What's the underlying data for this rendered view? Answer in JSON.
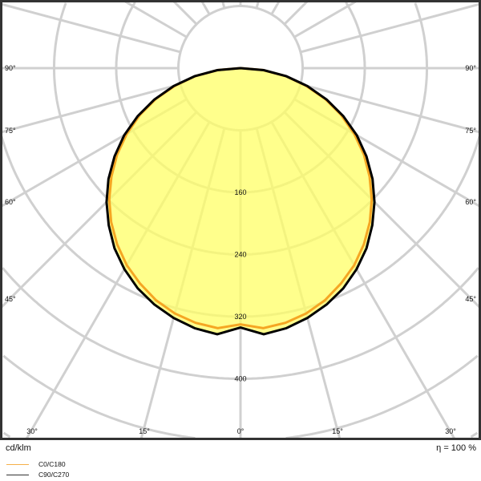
{
  "chart_data": {
    "type": "polar-line",
    "unit_label": "cd/klm",
    "efficiency_label": "η = 100 %",
    "radial_ticks": [
      80,
      160,
      240,
      320,
      400,
      480,
      560
    ],
    "radial_tick_labels": [
      "160",
      "240",
      "320",
      "400"
    ],
    "angle_labels_side": [
      "90°",
      "75°",
      "60°",
      "45°"
    ],
    "angle_labels_bottom": [
      "30°",
      "15°",
      "0°",
      "15°",
      "30°"
    ],
    "angles_deg": [
      0,
      5,
      10,
      15,
      20,
      25,
      30,
      35,
      40,
      45,
      50,
      55,
      60,
      65,
      70,
      75,
      80,
      85,
      90
    ],
    "series": [
      {
        "name": "C0/C180",
        "color": "#f5a623",
        "values": [
          330,
          336,
          333,
          327,
          318,
          306,
          293,
          277,
          259,
          239,
          217,
          194,
          169,
          143,
          116,
          87,
          59,
          29,
          0
        ]
      },
      {
        "name": "C90/C270",
        "color": "#000000",
        "values": [
          334,
          344,
          340,
          333,
          324,
          313,
          299,
          283,
          264,
          244,
          222,
          198,
          173,
          146,
          118,
          89,
          60,
          30,
          0
        ]
      }
    ],
    "grid": true,
    "fill_color": "#ffff66",
    "legend_position": "bottom-left"
  }
}
